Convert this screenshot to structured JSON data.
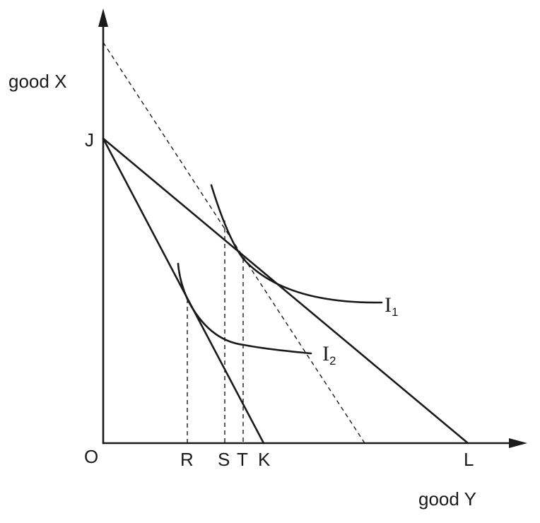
{
  "axes": {
    "vertical_label": "good X",
    "horizontal_label": "good Y",
    "origin_label": "O"
  },
  "points": {
    "J": "J",
    "R": "R",
    "S": "S",
    "T": "T",
    "K": "K",
    "L": "L"
  },
  "curves": {
    "i1": {
      "letter": "I",
      "subscript": "1"
    },
    "i2": {
      "letter": "I",
      "subscript": "2"
    }
  }
}
